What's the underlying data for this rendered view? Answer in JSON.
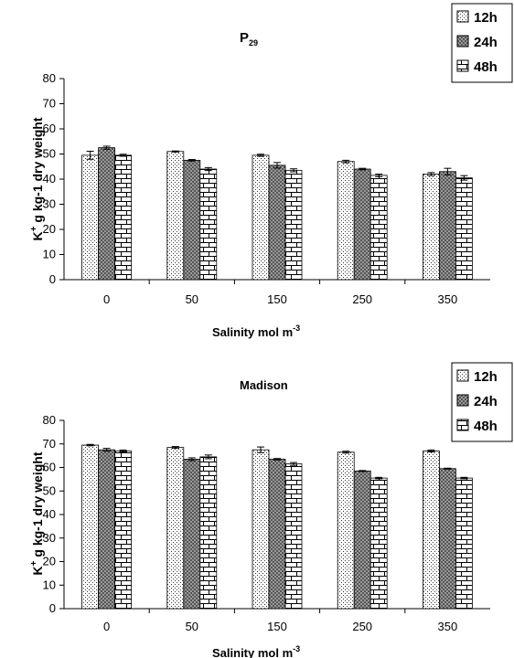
{
  "chart_data": [
    {
      "type": "bar",
      "title_main": "P",
      "title_sub": "29",
      "xlabel_main": "Salinity  mol m",
      "xlabel_sup": "-3",
      "ylabel_k": "K",
      "ylabel_sup": "+",
      "ylabel_rest": " g kg-1 dry weight",
      "ylim": [
        0,
        80
      ],
      "yticks": [
        "0",
        "10",
        "20",
        "30",
        "40",
        "50",
        "60",
        "70",
        "80"
      ],
      "categories": [
        "0",
        "50",
        "150",
        "250",
        "350"
      ],
      "series": [
        {
          "name": "12h",
          "values": [
            49.5,
            51,
            49.5,
            47,
            42
          ],
          "errors": [
            1.6,
            0.2,
            0.4,
            0.5,
            0.6
          ]
        },
        {
          "name": "24h",
          "values": [
            52.5,
            47.5,
            45.5,
            44,
            43
          ],
          "errors": [
            0.6,
            0.3,
            1.1,
            0.3,
            1.3
          ]
        },
        {
          "name": "48h",
          "values": [
            49.5,
            44,
            43.5,
            41.5,
            40.5
          ],
          "errors": [
            0.4,
            0.6,
            0.6,
            0.5,
            0.9
          ]
        }
      ],
      "legend_position": "top-right",
      "grid": false
    },
    {
      "type": "bar",
      "title_main": "Madison",
      "title_sub": "",
      "xlabel_main": "Salinity  mol m",
      "xlabel_sup": "-3",
      "ylabel_k": "K",
      "ylabel_sup": "+",
      "ylabel_rest": " g kg-1 dry weight",
      "ylim": [
        0,
        80
      ],
      "yticks": [
        "0",
        "10",
        "20",
        "30",
        "40",
        "50",
        "60",
        "70",
        "80"
      ],
      "categories": [
        "0",
        "50",
        "150",
        "250",
        "350"
      ],
      "series": [
        {
          "name": "12h",
          "values": [
            69.5,
            68.5,
            67.5,
            66.5,
            67
          ],
          "errors": [
            0.3,
            0.4,
            1.2,
            0.4,
            0.4
          ]
        },
        {
          "name": "24h",
          "values": [
            67.5,
            63.5,
            63.5,
            58.5,
            59.5
          ],
          "errors": [
            0.6,
            0.6,
            0.3,
            0.2,
            0.2
          ]
        },
        {
          "name": "48h",
          "values": [
            67,
            64.5,
            61.5,
            55.5,
            55.5
          ],
          "errors": [
            0.4,
            0.8,
            0.6,
            0.3,
            0.3
          ]
        }
      ],
      "legend_position": "top-right",
      "grid": false
    }
  ]
}
